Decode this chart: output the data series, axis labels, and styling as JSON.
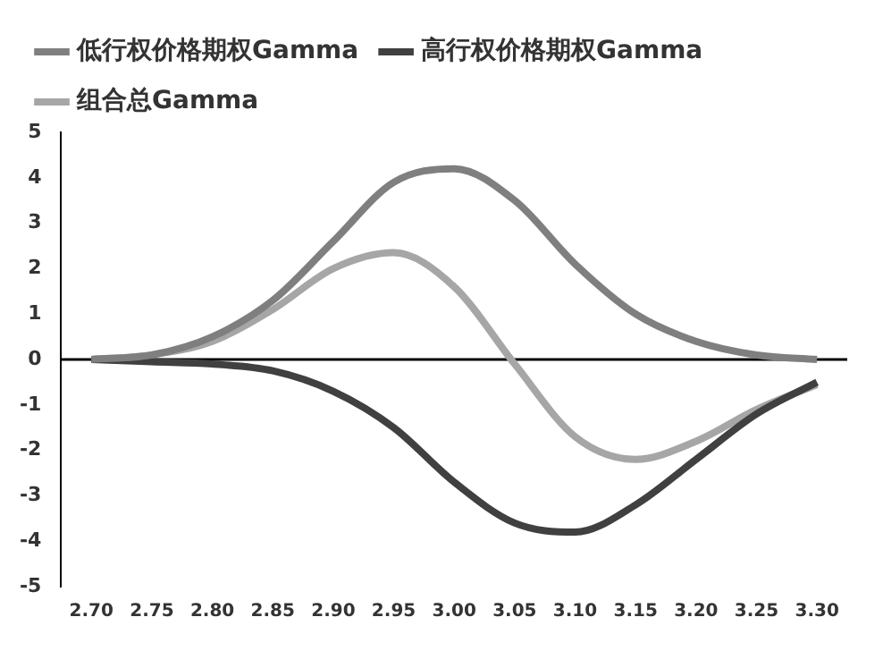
{
  "chart_data": {
    "type": "line",
    "categories": [
      "2.70",
      "2.75",
      "2.80",
      "2.85",
      "2.90",
      "2.95",
      "3.00",
      "3.05",
      "3.10",
      "3.15",
      "3.20",
      "3.25",
      "3.30"
    ],
    "series": [
      {
        "name": "低行权价格期权Gamma",
        "color": "#7f7f7f",
        "values": [
          0,
          0.1,
          0.5,
          1.3,
          2.6,
          3.9,
          4.2,
          3.5,
          2.1,
          1.0,
          0.4,
          0.1,
          0
        ]
      },
      {
        "name": "高行权价格期权Gamma",
        "color": "#404040",
        "values": [
          0,
          -0.05,
          -0.1,
          -0.25,
          -0.7,
          -1.5,
          -2.7,
          -3.6,
          -3.8,
          -3.2,
          -2.2,
          -1.2,
          -0.5
        ]
      },
      {
        "name": "组合总Gamma",
        "color": "#a6a6a6",
        "values": [
          0,
          0.1,
          0.4,
          1.1,
          2.0,
          2.35,
          1.6,
          -0.1,
          -1.7,
          -2.2,
          -1.8,
          -1.1,
          -0.55
        ]
      }
    ],
    "ylim": [
      -5,
      5
    ],
    "yticks": [
      -5,
      -4,
      -3,
      -2,
      -1,
      0,
      1,
      2,
      3,
      4,
      5
    ],
    "grid": false,
    "ref_lines": [
      {
        "axis": "y",
        "value": 0,
        "color": "#000000"
      }
    ],
    "legend": "top",
    "marker": "none",
    "line_style": "solid"
  }
}
